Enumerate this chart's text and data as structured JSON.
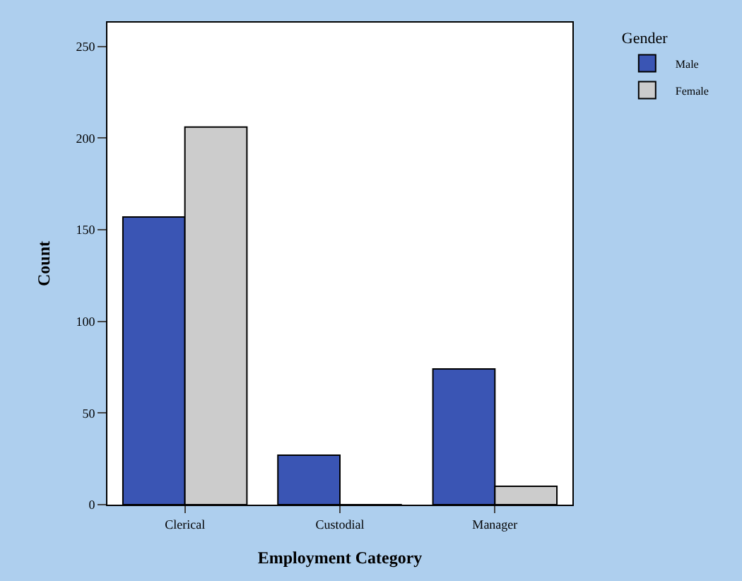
{
  "chart_data": {
    "type": "bar",
    "xlabel": "Employment Category",
    "ylabel": "Count",
    "legend_title": "Gender",
    "categories": [
      "Clerical",
      "Custodial",
      "Manager"
    ],
    "series": [
      {
        "name": "Male",
        "color": "#3a55b4",
        "values": [
          157,
          27,
          74
        ]
      },
      {
        "name": "Female",
        "color": "#cccccc",
        "values": [
          206,
          0,
          10
        ]
      }
    ],
    "ylim": [
      0,
      263
    ],
    "yticks": [
      0,
      50,
      100,
      150,
      200,
      250
    ],
    "legend": "top right"
  }
}
